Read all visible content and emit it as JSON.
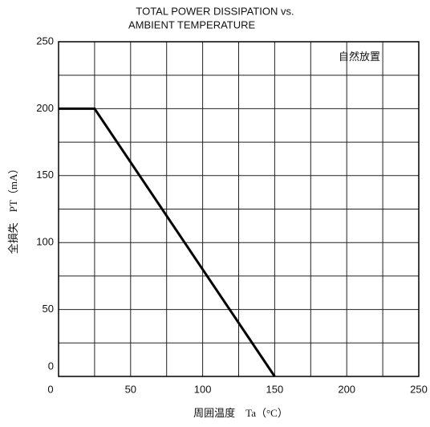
{
  "chart_data": {
    "type": "line",
    "title": [
      "TOTAL POWER DISSIPATION vs.",
      "AMBIENT TEMPERATURE"
    ],
    "annotation": "自然放置",
    "xlabel": "周囲温度　Ta（°C）",
    "ylabel": "全損失　PT（mA）",
    "series": [
      {
        "name": "PT",
        "color": "#000000",
        "x": [
          0,
          25,
          150
        ],
        "values": [
          200,
          200,
          0
        ]
      }
    ],
    "xlim": [
      0,
      250
    ],
    "xticks": [
      0,
      50,
      100,
      150,
      200,
      250
    ],
    "minor_xticks": [
      25,
      75,
      125,
      175,
      225
    ],
    "ylim": [
      0,
      250
    ],
    "yticks": [
      0,
      50,
      100,
      150,
      200,
      250
    ],
    "minor_yticks": [
      25,
      75,
      125,
      175,
      225
    ],
    "grid": true
  }
}
